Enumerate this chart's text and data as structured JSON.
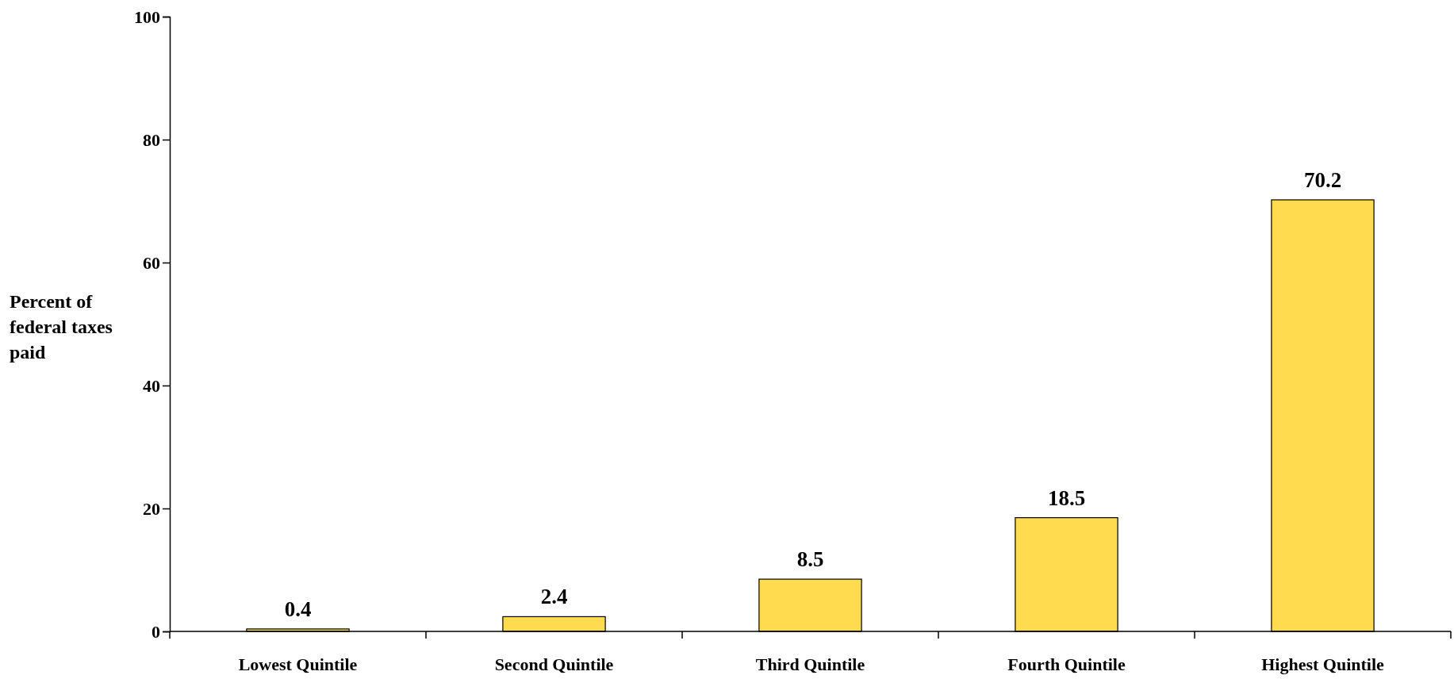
{
  "chart_data": {
    "type": "bar",
    "ylabel": "Percent of federal taxes paid",
    "categories": [
      "Lowest Quintile",
      "Second Quintile",
      "Third Quintile",
      "Fourth Quintile",
      "Highest Quintile"
    ],
    "values": [
      0.4,
      2.4,
      8.5,
      18.5,
      70.2
    ],
    "color": "#ffdb4d",
    "ylim": [
      0,
      100
    ],
    "yticks": [
      0,
      20,
      40,
      60,
      80,
      100
    ],
    "grid": false,
    "data_labels": true
  }
}
